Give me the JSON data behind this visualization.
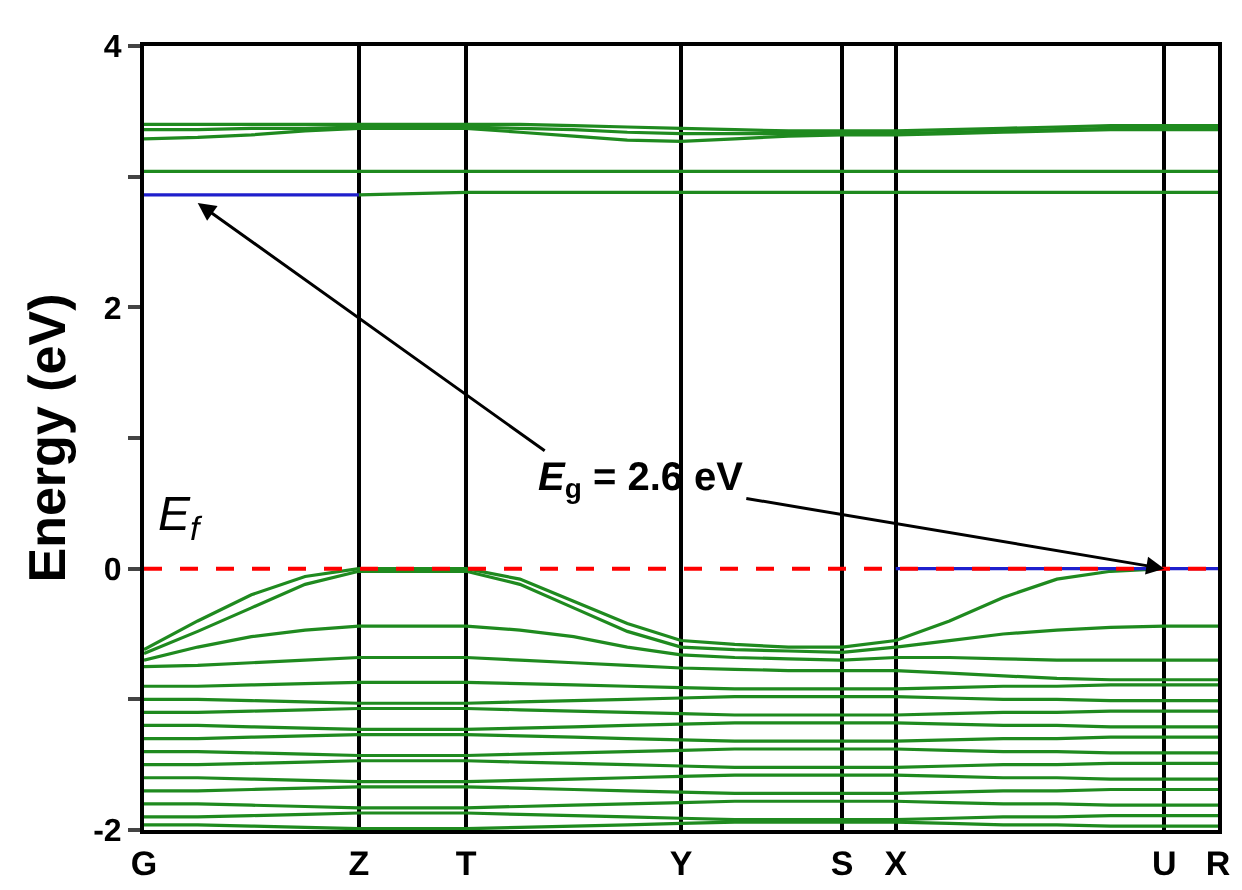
{
  "chart_data": {
    "type": "line",
    "ylabel": "Energy (eV)",
    "categories": [
      "G",
      null,
      null,
      null,
      "Z",
      null,
      "T",
      null,
      null,
      null,
      "Y",
      null,
      null,
      "S",
      "X",
      null,
      null,
      null,
      null,
      "U",
      "R"
    ],
    "ylim": [
      -2,
      4
    ],
    "yticks": [
      -2,
      {
        "value": -1,
        "label": null
      },
      0,
      {
        "value": 1,
        "label": null
      },
      2,
      {
        "value": 3,
        "label": null
      },
      4
    ],
    "grid": "x",
    "marker": "none",
    "line_style": "solid",
    "series": [
      {
        "color": "#1f8a1f",
        "values": [
          null,
          null,
          null,
          null,
          2.86,
          2.87,
          2.88,
          2.88,
          2.88,
          2.88,
          2.88,
          2.88,
          2.88,
          2.88,
          2.88,
          2.88,
          2.88,
          2.88,
          2.88,
          2.88,
          2.88
        ]
      },
      {
        "color": "#1f8a1f",
        "values": [
          3.04,
          3.04,
          3.04,
          3.04,
          3.04,
          3.04,
          3.04,
          3.04,
          3.04,
          3.04,
          3.04,
          3.04,
          3.04,
          3.04,
          3.04,
          3.04,
          3.04,
          3.04,
          3.04,
          3.04,
          3.04
        ]
      },
      {
        "color": "#1f8a1f",
        "values": [
          3.36,
          3.36,
          3.37,
          3.37,
          3.38,
          3.38,
          3.38,
          3.37,
          3.36,
          3.34,
          3.33,
          3.33,
          3.33,
          3.33,
          3.33,
          3.34,
          3.35,
          3.36,
          3.37,
          3.37,
          3.37
        ]
      },
      {
        "color": "#1f8a1f",
        "values": [
          3.29,
          3.3,
          3.32,
          3.35,
          3.37,
          3.37,
          3.37,
          3.34,
          3.31,
          3.28,
          3.27,
          3.29,
          3.31,
          3.32,
          3.32,
          3.33,
          3.34,
          3.35,
          3.36,
          3.36,
          3.36
        ]
      },
      {
        "color": "#1f8a1f",
        "values": [
          3.4,
          3.4,
          3.4,
          3.4,
          3.4,
          3.4,
          3.4,
          3.4,
          3.39,
          3.38,
          3.37,
          3.36,
          3.35,
          3.35,
          3.35,
          3.36,
          3.37,
          3.38,
          3.39,
          3.39,
          3.39
        ]
      },
      {
        "color": "#1f8a1f",
        "values": [
          -0.62,
          -0.4,
          -0.2,
          -0.06,
          0,
          0,
          0,
          -0.08,
          -0.25,
          -0.42,
          -0.55,
          -0.58,
          -0.6,
          -0.6,
          -0.55,
          -0.4,
          -0.22,
          -0.08,
          -0.02,
          0,
          null
        ]
      },
      {
        "color": "#1f8a1f",
        "values": [
          -0.65,
          -0.48,
          -0.3,
          -0.12,
          -0.02,
          -0.02,
          -0.02,
          -0.12,
          -0.3,
          -0.48,
          -0.6,
          -0.62,
          -0.63,
          -0.64,
          -0.6,
          -0.55,
          -0.5,
          -0.47,
          -0.45,
          -0.44,
          -0.44
        ]
      },
      {
        "color": "#1f8a1f",
        "values": [
          -0.7,
          -0.6,
          -0.52,
          -0.47,
          -0.44,
          -0.44,
          -0.44,
          -0.47,
          -0.52,
          -0.6,
          -0.66,
          -0.68,
          -0.69,
          -0.7,
          -0.68,
          -0.68,
          -0.69,
          -0.7,
          -0.7,
          -0.7,
          -0.7
        ]
      },
      {
        "color": "#1f8a1f",
        "values": [
          -0.75,
          -0.74,
          -0.72,
          -0.7,
          -0.68,
          -0.68,
          -0.68,
          -0.7,
          -0.72,
          -0.74,
          -0.76,
          -0.77,
          -0.78,
          -0.78,
          -0.78,
          -0.8,
          -0.82,
          -0.84,
          -0.85,
          -0.85,
          -0.85
        ]
      },
      {
        "color": "#1f8a1f",
        "values": [
          -0.9,
          -0.9,
          -0.89,
          -0.88,
          -0.87,
          -0.87,
          -0.87,
          -0.88,
          -0.89,
          -0.9,
          -0.91,
          -0.92,
          -0.92,
          -0.92,
          -0.92,
          -0.91,
          -0.9,
          -0.9,
          -0.89,
          -0.89,
          -0.89
        ]
      },
      {
        "color": "#1f8a1f",
        "values": [
          -1,
          -1,
          -1.01,
          -1.02,
          -1.03,
          -1.03,
          -1.03,
          -1.02,
          -1.01,
          -1,
          -0.99,
          -0.98,
          -0.98,
          -0.98,
          -0.98,
          -0.99,
          -1,
          -1,
          -1.01,
          -1.01,
          -1.01
        ]
      },
      {
        "color": "#1f8a1f",
        "values": [
          -1.1,
          -1.1,
          -1.09,
          -1.08,
          -1.07,
          -1.07,
          -1.07,
          -1.08,
          -1.09,
          -1.1,
          -1.11,
          -1.12,
          -1.12,
          -1.12,
          -1.12,
          -1.11,
          -1.1,
          -1.1,
          -1.09,
          -1.09,
          -1.09
        ]
      },
      {
        "color": "#1f8a1f",
        "values": [
          -1.2,
          -1.2,
          -1.21,
          -1.22,
          -1.23,
          -1.23,
          -1.23,
          -1.22,
          -1.21,
          -1.2,
          -1.19,
          -1.18,
          -1.18,
          -1.18,
          -1.18,
          -1.19,
          -1.2,
          -1.2,
          -1.21,
          -1.21,
          -1.21
        ]
      },
      {
        "color": "#1f8a1f",
        "values": [
          -1.3,
          -1.3,
          -1.29,
          -1.28,
          -1.27,
          -1.27,
          -1.27,
          -1.28,
          -1.29,
          -1.3,
          -1.31,
          -1.32,
          -1.32,
          -1.32,
          -1.32,
          -1.31,
          -1.3,
          -1.3,
          -1.29,
          -1.29,
          -1.29
        ]
      },
      {
        "color": "#1f8a1f",
        "values": [
          -1.4,
          -1.4,
          -1.41,
          -1.42,
          -1.43,
          -1.43,
          -1.43,
          -1.42,
          -1.41,
          -1.4,
          -1.39,
          -1.38,
          -1.38,
          -1.38,
          -1.38,
          -1.39,
          -1.4,
          -1.4,
          -1.41,
          -1.41,
          -1.41
        ]
      },
      {
        "color": "#1f8a1f",
        "values": [
          -1.5,
          -1.5,
          -1.49,
          -1.48,
          -1.47,
          -1.47,
          -1.47,
          -1.48,
          -1.49,
          -1.5,
          -1.51,
          -1.52,
          -1.52,
          -1.52,
          -1.52,
          -1.51,
          -1.5,
          -1.5,
          -1.49,
          -1.49,
          -1.49
        ]
      },
      {
        "color": "#1f8a1f",
        "values": [
          -1.6,
          -1.6,
          -1.61,
          -1.62,
          -1.63,
          -1.63,
          -1.63,
          -1.62,
          -1.61,
          -1.6,
          -1.59,
          -1.58,
          -1.58,
          -1.58,
          -1.58,
          -1.59,
          -1.6,
          -1.6,
          -1.61,
          -1.61,
          -1.61
        ]
      },
      {
        "color": "#1f8a1f",
        "values": [
          -1.7,
          -1.7,
          -1.69,
          -1.68,
          -1.67,
          -1.67,
          -1.67,
          -1.68,
          -1.69,
          -1.7,
          -1.71,
          -1.72,
          -1.72,
          -1.72,
          -1.72,
          -1.71,
          -1.7,
          -1.7,
          -1.69,
          -1.69,
          -1.69
        ]
      },
      {
        "color": "#1f8a1f",
        "values": [
          -1.8,
          -1.8,
          -1.81,
          -1.82,
          -1.83,
          -1.83,
          -1.83,
          -1.82,
          -1.81,
          -1.8,
          -1.79,
          -1.78,
          -1.78,
          -1.78,
          -1.78,
          -1.79,
          -1.8,
          -1.8,
          -1.81,
          -1.81,
          -1.81
        ]
      },
      {
        "color": "#1f8a1f",
        "values": [
          -1.9,
          -1.9,
          -1.89,
          -1.88,
          -1.87,
          -1.87,
          -1.87,
          -1.88,
          -1.89,
          -1.9,
          -1.91,
          -1.92,
          -1.92,
          -1.92,
          -1.92,
          -1.91,
          -1.9,
          -1.9,
          -1.89,
          -1.89,
          -1.89
        ]
      },
      {
        "color": "#1f8a1f",
        "values": [
          -1.96,
          -1.96,
          -1.97,
          -1.98,
          -1.99,
          -1.99,
          -1.99,
          -1.98,
          -1.97,
          -1.96,
          -1.95,
          -1.94,
          -1.94,
          -1.94,
          -1.94,
          -1.95,
          -1.96,
          -1.96,
          -1.97,
          -1.97,
          -1.97
        ]
      },
      {
        "color": "#1f1fcc",
        "values": [
          2.86,
          2.86,
          2.86,
          2.86,
          2.86,
          null,
          null,
          null,
          null,
          null,
          null,
          null,
          null,
          null,
          null,
          null,
          null,
          null,
          null,
          null,
          null
        ]
      },
      {
        "color": "#1f1fcc",
        "values": [
          null,
          null,
          null,
          null,
          null,
          null,
          null,
          null,
          null,
          null,
          null,
          null,
          null,
          null,
          0,
          0,
          0,
          0,
          0,
          0,
          0
        ]
      }
    ],
    "ref_lines": [
      {
        "axis": "y",
        "value": 0,
        "label": "E$_{f}$",
        "color": "#ff0000",
        "line_style": "dashed"
      }
    ],
    "annotations": [
      {
        "text": "E$_{g}$ = 2.6 eV",
        "x": "U",
        "y": 0
      }
    ]
  }
}
